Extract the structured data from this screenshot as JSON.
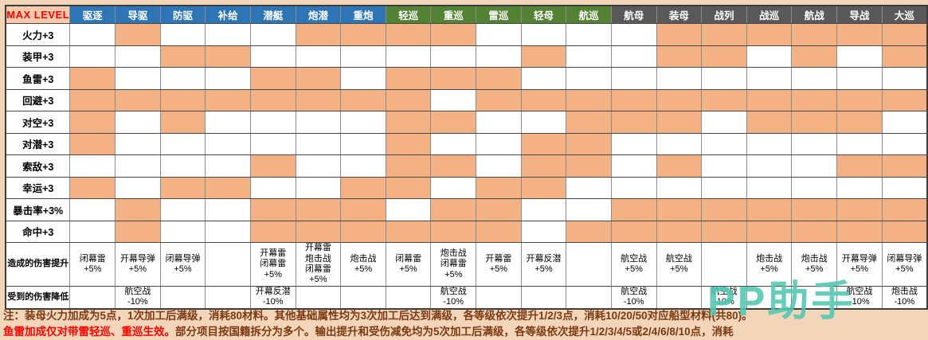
{
  "colors": {
    "page_bg": "#F3D5BA",
    "orange_fill": "#F4B183",
    "corner_bg": "#F8CBAD",
    "header_blue": "#2E75B6",
    "header_green": "#548235",
    "header_gray": "#595959",
    "note_maroon": "#7B3A12",
    "note_red": "#FF0000",
    "watermark_teal": "#4FC8B2"
  },
  "chart_data": {
    "type": "table",
    "title": "MAX LEVEL",
    "corner_label": "MAX LEVEL",
    "legend_note": "orange filled cell = bonus applies to that ship type",
    "columns": [
      {
        "label": "驱逐",
        "group": "blue"
      },
      {
        "label": "导驱",
        "group": "blue"
      },
      {
        "label": "防驱",
        "group": "blue"
      },
      {
        "label": "补给",
        "group": "blue"
      },
      {
        "label": "潜艇",
        "group": "blue"
      },
      {
        "label": "炮潜",
        "group": "blue"
      },
      {
        "label": "重炮",
        "group": "blue"
      },
      {
        "label": "轻巡",
        "group": "green"
      },
      {
        "label": "重巡",
        "group": "green"
      },
      {
        "label": "雷巡",
        "group": "green"
      },
      {
        "label": "轻母",
        "group": "green"
      },
      {
        "label": "航巡",
        "group": "green"
      },
      {
        "label": "航母",
        "group": "gray"
      },
      {
        "label": "装母",
        "group": "gray"
      },
      {
        "label": "战列",
        "group": "gray"
      },
      {
        "label": "战巡",
        "group": "gray"
      },
      {
        "label": "航战",
        "group": "gray"
      },
      {
        "label": "导战",
        "group": "gray"
      },
      {
        "label": "大巡",
        "group": "gray"
      }
    ],
    "stat_rows": [
      {
        "label": "火力+3",
        "cells": [
          0,
          1,
          0,
          0,
          0,
          1,
          1,
          1,
          1,
          0,
          0,
          0,
          0,
          1,
          1,
          1,
          1,
          1,
          1
        ]
      },
      {
        "label": "装甲+3",
        "cells": [
          0,
          0,
          1,
          1,
          0,
          0,
          0,
          0,
          0,
          0,
          1,
          0,
          0,
          1,
          1,
          0,
          1,
          0,
          1
        ]
      },
      {
        "label": "鱼雷+3",
        "cells": [
          1,
          0,
          0,
          0,
          1,
          1,
          0,
          1,
          1,
          1,
          0,
          0,
          0,
          0,
          0,
          0,
          0,
          0,
          0
        ]
      },
      {
        "label": "回避+3",
        "cells": [
          1,
          1,
          1,
          1,
          1,
          1,
          1,
          1,
          0,
          1,
          1,
          1,
          1,
          1,
          1,
          1,
          1,
          1,
          1
        ]
      },
      {
        "label": "对空+3",
        "cells": [
          1,
          0,
          1,
          0,
          0,
          0,
          0,
          1,
          1,
          0,
          0,
          1,
          1,
          1,
          0,
          1,
          1,
          1,
          0
        ]
      },
      {
        "label": "对潜+3",
        "cells": [
          1,
          0,
          0,
          0,
          0,
          0,
          0,
          1,
          0,
          0,
          1,
          1,
          0,
          0,
          0,
          0,
          0,
          0,
          0
        ]
      },
      {
        "label": "索敌+3",
        "cells": [
          0,
          0,
          0,
          0,
          1,
          0,
          0,
          1,
          1,
          0,
          1,
          1,
          0,
          1,
          0,
          0,
          0,
          1,
          1
        ]
      },
      {
        "label": "幸运+3",
        "cells": [
          1,
          0,
          1,
          1,
          0,
          0,
          1,
          1,
          0,
          1,
          1,
          0,
          0,
          0,
          0,
          0,
          0,
          0,
          0
        ]
      },
      {
        "label": "暴击率+3%",
        "cells": [
          0,
          1,
          0,
          0,
          1,
          1,
          1,
          0,
          1,
          1,
          0,
          0,
          1,
          1,
          1,
          1,
          1,
          1,
          1
        ]
      },
      {
        "label": "命中+3",
        "cells": [
          0,
          1,
          0,
          0,
          1,
          1,
          1,
          1,
          1,
          1,
          0,
          1,
          1,
          1,
          1,
          1,
          1,
          1,
          1
        ]
      }
    ],
    "text_rows": [
      {
        "label": "造成的伤害提升",
        "kind": "damage-up",
        "cells": [
          "闭幕雷\n+5%",
          "开幕导弹\n+5%",
          "闭幕导弹\n+5%",
          "",
          "开幕雷\n闭幕雷\n+5%",
          "开幕雷\n炮击战\n闭幕雷\n+5%",
          "炮击战\n+5%",
          "闭幕雷\n+5%",
          "炮击战\n闭幕雷\n+5%",
          "开幕雷\n+5%",
          "开幕反潜\n+5%",
          "",
          "航空战\n+5%",
          "航空战\n+5%",
          "",
          "炮击战\n+5%",
          "炮击战\n+5%",
          "开幕导弹\n+5%",
          "闭幕导弹\n+5%"
        ]
      },
      {
        "label": "受到的伤害降低",
        "kind": "damage-down",
        "cells": [
          "",
          "航空战\n-10%",
          "",
          "",
          "开幕反潜\n-10%",
          "",
          "",
          "",
          "航空战\n-10%",
          "",
          "",
          "",
          "航空战\n-10%",
          "",
          "航空战\n-10%",
          "",
          "",
          "航空战\n-10%",
          "炮击战\n-10%"
        ]
      }
    ]
  },
  "notes": {
    "line1": "注：装母火力加成为5点，1次加工后满级，消耗80材料。其他基础属性均为3次加工后达到满级，各等级依次提升1/2/3点，消耗10/20/50对应船型材料(共80)。",
    "line2_red": "鱼雷加成仅对带雷轻巡、重巡生效。",
    "line2_rest": "部分项目按国籍拆分为多个。输出提升和受伤减免均为5次加工后满级，各等级依次提升1/2/3/4/5或2/4/6/8/10点，消耗"
  },
  "watermark": {
    "text": "PP助手"
  }
}
